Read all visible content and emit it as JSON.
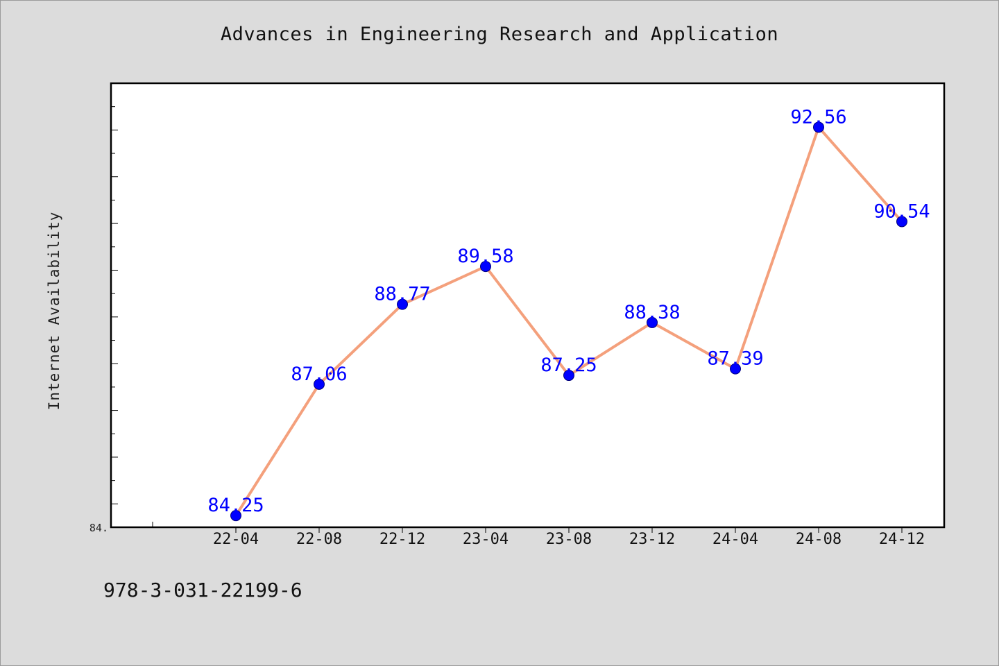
{
  "title": "Advances in Engineering Research and Application",
  "footnote": "978-3-031-22199-6",
  "colors": {
    "background": "#dcdcdc",
    "plot_background": "#ffffff",
    "line": "#f4a07c",
    "marker": "#0000ff",
    "data_label": "#0000ff"
  },
  "chart_data": {
    "type": "line",
    "title": "Advances in Engineering Research and Application",
    "xlabel": "",
    "ylabel": "Internet Availability",
    "categories": [
      "22-04",
      "22-08",
      "22-12",
      "23-04",
      "23-08",
      "23-12",
      "24-04",
      "24-08",
      "24-12"
    ],
    "series": [
      {
        "values": [
          84.25,
          87.06,
          88.77,
          89.58,
          87.25,
          88.38,
          87.39,
          92.56,
          90.54
        ]
      }
    ],
    "data_labels": [
      "84.25",
      "87.06",
      "88.77",
      "89.58",
      "87.25",
      "88.38",
      "87.39",
      "92.56",
      "90.54"
    ],
    "ylim": [
      84.0,
      93.5
    ],
    "y_tick_labels": [
      "84."
    ],
    "grid": false,
    "legend": "none"
  }
}
